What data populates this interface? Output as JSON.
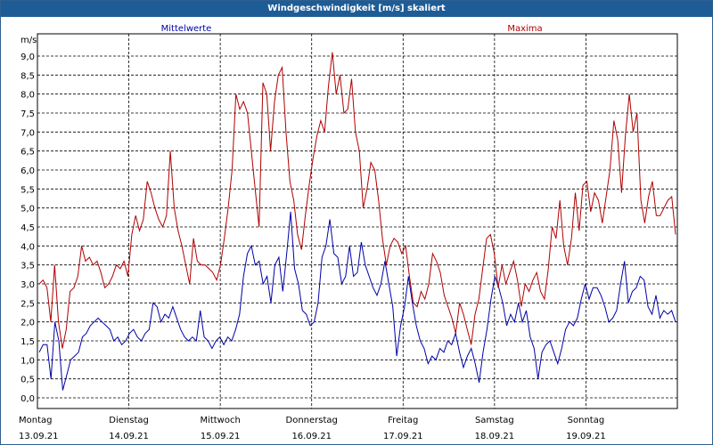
{
  "window": {
    "title": "Windgeschwindigkeit [m/s] skaliert"
  },
  "legend": {
    "mean_label": "Mittelwerte",
    "max_label": "Maxima",
    "mean_color": "#0000a8",
    "max_color": "#b00000"
  },
  "chart_data": {
    "type": "line",
    "title": "Windgeschwindigkeit [m/s] skaliert",
    "ylabel": "m/s",
    "ylim": [
      0,
      9.3
    ],
    "grid": true,
    "yticks": [
      "0,0",
      "0,5",
      "1,0",
      "1,5",
      "2,0",
      "2,5",
      "3,0",
      "3,5",
      "4,0",
      "4,5",
      "5,0",
      "5,5",
      "6,0",
      "6,5",
      "7,0",
      "7,5",
      "8,0",
      "8,5",
      "9,0"
    ],
    "xticks": [
      {
        "day": "Montag",
        "date": "13.09.21"
      },
      {
        "day": "Dienstag",
        "date": "14.09.21"
      },
      {
        "day": "Mittwoch",
        "date": "15.09.21"
      },
      {
        "day": "Donnerstag",
        "date": "16.09.21"
      },
      {
        "day": "Freitag",
        "date": "17.09.21"
      },
      {
        "day": "Samstag",
        "date": "18.09.21"
      },
      {
        "day": "Sonntag",
        "date": "19.09.21"
      }
    ],
    "x_days": 7,
    "series": [
      {
        "name": "Mittelwerte",
        "color": "#0000a8",
        "values": [
          1.2,
          1.4,
          1.4,
          0.5,
          2.0,
          1.5,
          0.2,
          0.6,
          1.0,
          1.1,
          1.2,
          1.6,
          1.7,
          1.9,
          2.0,
          2.1,
          2.0,
          1.9,
          1.8,
          1.5,
          1.6,
          1.4,
          1.5,
          1.7,
          1.8,
          1.6,
          1.5,
          1.7,
          1.8,
          2.5,
          2.4,
          2.0,
          2.2,
          2.1,
          2.4,
          2.1,
          1.8,
          1.6,
          1.5,
          1.6,
          1.5,
          2.3,
          1.6,
          1.5,
          1.3,
          1.5,
          1.6,
          1.4,
          1.6,
          1.5,
          1.8,
          2.2,
          3.2,
          3.8,
          4.0,
          3.5,
          3.6,
          3.0,
          3.2,
          2.5,
          3.5,
          3.7,
          2.8,
          3.8,
          4.9,
          3.4,
          3.0,
          2.3,
          2.2,
          1.9,
          2.0,
          2.5,
          3.7,
          4.0,
          4.7,
          3.8,
          3.7,
          3.0,
          3.2,
          4.0,
          3.2,
          3.3,
          4.1,
          3.5,
          3.2,
          2.9,
          2.7,
          3.0,
          3.6,
          3.0,
          2.4,
          1.1,
          1.9,
          2.4,
          3.2,
          2.5,
          1.9,
          1.5,
          1.3,
          0.9,
          1.1,
          1.0,
          1.3,
          1.2,
          1.5,
          1.4,
          1.7,
          1.2,
          0.8,
          1.1,
          1.3,
          0.9,
          0.4,
          1.2,
          1.8,
          2.6,
          3.2,
          2.9,
          2.5,
          1.9,
          2.2,
          2.0,
          2.5,
          2.0,
          2.3,
          1.6,
          1.3,
          0.5,
          1.2,
          1.4,
          1.5,
          1.2,
          0.9,
          1.3,
          1.8,
          2.0,
          1.9,
          2.1,
          2.6,
          3.0,
          2.6,
          2.9,
          2.9,
          2.7,
          2.4,
          2.0,
          2.1,
          2.3,
          3.0,
          3.6,
          2.5,
          2.8,
          2.9,
          3.2,
          3.1,
          2.4,
          2.2,
          2.7,
          2.1,
          2.3,
          2.2,
          2.3,
          2.0
        ]
      },
      {
        "name": "Maxima",
        "color": "#b00000",
        "values": [
          3.0,
          3.1,
          2.9,
          2.0,
          3.5,
          2.0,
          1.3,
          1.8,
          2.8,
          2.9,
          3.2,
          4.0,
          3.6,
          3.7,
          3.5,
          3.6,
          3.3,
          2.9,
          3.0,
          3.2,
          3.5,
          3.4,
          3.6,
          3.2,
          4.3,
          4.8,
          4.4,
          4.7,
          5.7,
          5.4,
          5.0,
          4.7,
          4.5,
          4.8,
          6.5,
          5.0,
          4.4,
          4.0,
          3.5,
          3.0,
          4.2,
          3.6,
          3.5,
          3.5,
          3.4,
          3.3,
          3.1,
          3.5,
          4.2,
          5.0,
          6.0,
          8.0,
          7.6,
          7.8,
          7.5,
          6.5,
          5.5,
          4.5,
          8.3,
          8.0,
          6.5,
          7.8,
          8.5,
          8.7,
          7.0,
          5.7,
          5.2,
          4.3,
          3.9,
          4.8,
          5.6,
          6.3,
          6.9,
          7.3,
          7.0,
          8.2,
          9.1,
          8.0,
          8.5,
          7.5,
          7.6,
          8.4,
          7.0,
          6.5,
          5.0,
          5.5,
          6.2,
          6.0,
          5.2,
          4.2,
          3.5,
          4.0,
          4.2,
          4.1,
          3.8,
          4.0,
          3.2,
          2.5,
          2.4,
          2.8,
          2.6,
          3.0,
          3.8,
          3.6,
          3.3,
          2.7,
          2.4,
          2.1,
          1.7,
          2.5,
          2.2,
          1.8,
          1.4,
          2.2,
          2.6,
          3.4,
          4.2,
          4.3,
          3.8,
          2.9,
          3.5,
          3.0,
          3.3,
          3.6,
          3.1,
          2.4,
          3.0,
          2.8,
          3.1,
          3.3,
          2.8,
          2.6,
          3.4,
          4.5,
          4.2,
          5.2,
          4.0,
          3.5,
          4.2,
          5.4,
          4.4,
          5.6,
          5.7,
          4.9,
          5.4,
          5.2,
          4.6,
          5.3,
          6.0,
          7.3,
          6.8,
          5.4,
          6.9,
          8.0,
          7.0,
          7.5,
          5.2,
          4.6,
          5.3,
          5.7,
          4.8,
          4.8,
          5.0,
          5.2,
          5.3,
          4.3
        ]
      }
    ]
  }
}
